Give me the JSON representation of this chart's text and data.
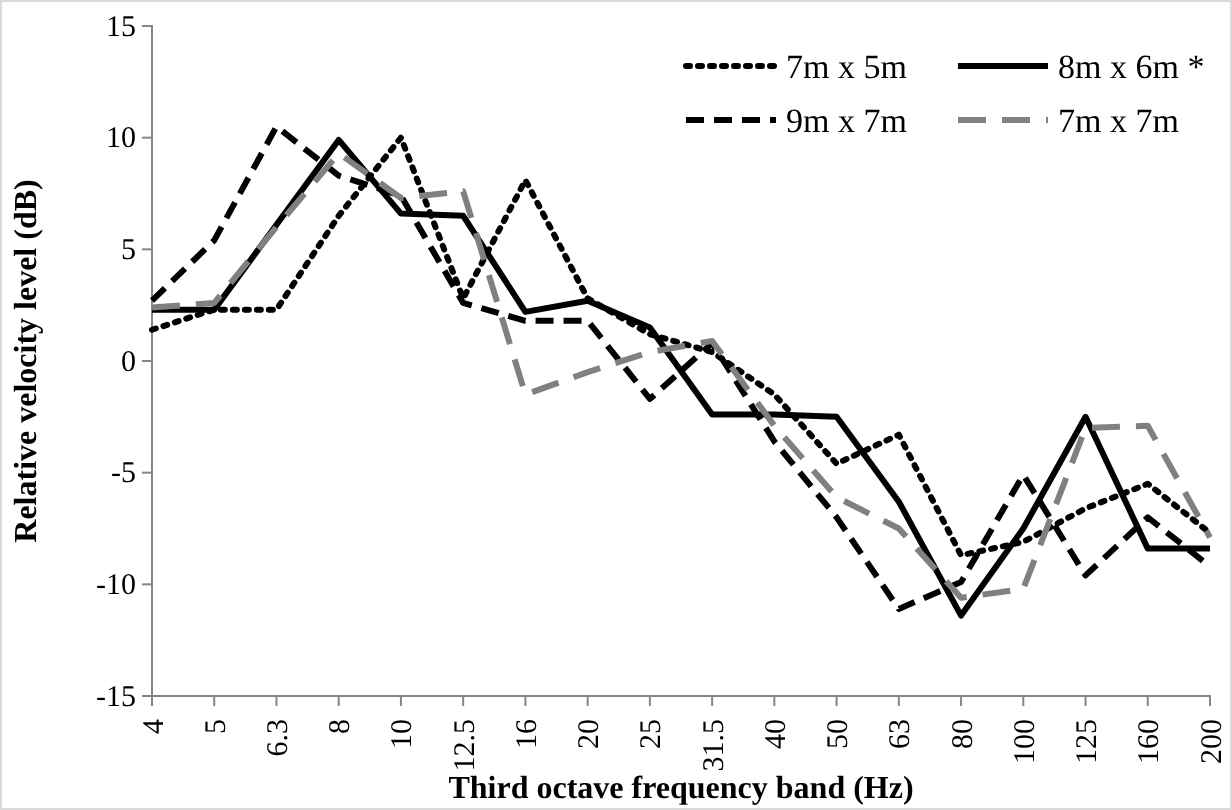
{
  "chart_data": {
    "type": "line",
    "xlabel": "Third octave frequency band (Hz)",
    "ylabel": "Relative velocity level  (dB)",
    "categories": [
      "4",
      "5",
      "6.3",
      "8",
      "10",
      "12.5",
      "16",
      "20",
      "25",
      "31.5",
      "40",
      "50",
      "63",
      "80",
      "100",
      "125",
      "160",
      "200"
    ],
    "ylim": [
      -15,
      15
    ],
    "yticks": [
      -15,
      -10,
      -5,
      0,
      5,
      10,
      15
    ],
    "grid": false,
    "legend": "top right",
    "marker": "none",
    "series": [
      {
        "name": "7m x 5m",
        "color": "#000000",
        "line_style": "dotted",
        "values": [
          1.4,
          2.3,
          2.3,
          6.5,
          10.0,
          2.8,
          8.1,
          2.8,
          1.2,
          0.4,
          -1.5,
          -4.6,
          -3.3,
          -8.7,
          -8.1,
          -6.6,
          -5.5,
          -7.7
        ]
      },
      {
        "name": "8m x 6m *",
        "color": "#000000",
        "line_style": "solid",
        "values": [
          2.3,
          2.3,
          6.1,
          9.9,
          6.6,
          6.5,
          2.2,
          2.7,
          1.5,
          -2.4,
          -2.4,
          -2.5,
          -6.3,
          -11.4,
          -7.5,
          -2.5,
          -8.4,
          -8.4
        ]
      },
      {
        "name": "9m x 7m",
        "color": "#000000",
        "line_style": "dashed",
        "values": [
          2.7,
          5.4,
          10.5,
          8.3,
          7.4,
          2.6,
          1.8,
          1.8,
          -1.7,
          0.8,
          -3.6,
          -7.0,
          -11.1,
          -9.9,
          -5.1,
          -9.6,
          -7.0,
          -9.2
        ]
      },
      {
        "name": "7m x 7m",
        "color": "#808080",
        "line_style": "dashed",
        "values": [
          2.4,
          2.6,
          6.0,
          9.3,
          7.3,
          7.6,
          -1.5,
          -0.5,
          0.4,
          0.9,
          -2.9,
          -6.1,
          -7.5,
          -10.6,
          -10.2,
          -3.0,
          -2.9,
          -7.9
        ]
      }
    ]
  }
}
